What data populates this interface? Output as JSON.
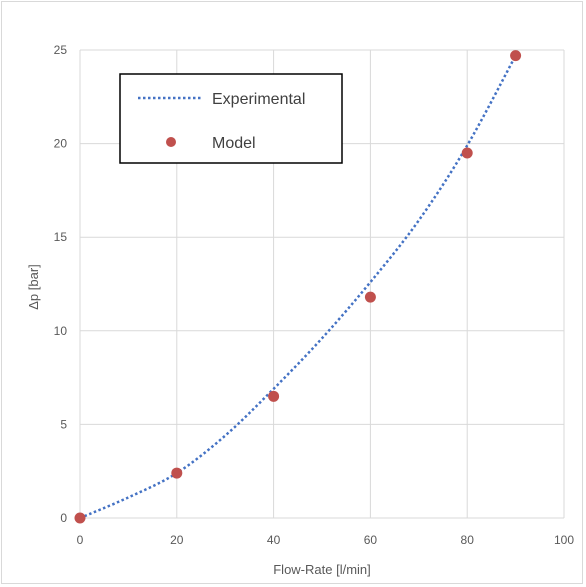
{
  "chart_data": {
    "type": "scatter",
    "title": "",
    "xlabel": "Flow-Rate [l/min]",
    "ylabel": "Δp [bar]",
    "xlim": [
      0,
      100
    ],
    "ylim": [
      0,
      25
    ],
    "xticks": [
      0,
      20,
      40,
      60,
      80,
      100
    ],
    "yticks": [
      0,
      5,
      10,
      15,
      20,
      25
    ],
    "grid": true,
    "legend_position": "top-left",
    "series": [
      {
        "name": "Experimental",
        "style": "dotted-line",
        "color": "#4472c4",
        "x": [
          0,
          10,
          20,
          30,
          40,
          50,
          60,
          70,
          80,
          90
        ],
        "y": [
          0,
          1.1,
          2.4,
          4.4,
          6.9,
          9.6,
          12.6,
          15.9,
          19.9,
          24.7
        ]
      },
      {
        "name": "Model",
        "style": "markers",
        "color": "#c0504d",
        "x": [
          0,
          20,
          40,
          60,
          80,
          90
        ],
        "y": [
          0,
          2.4,
          6.5,
          11.8,
          19.5,
          24.7
        ]
      }
    ]
  }
}
